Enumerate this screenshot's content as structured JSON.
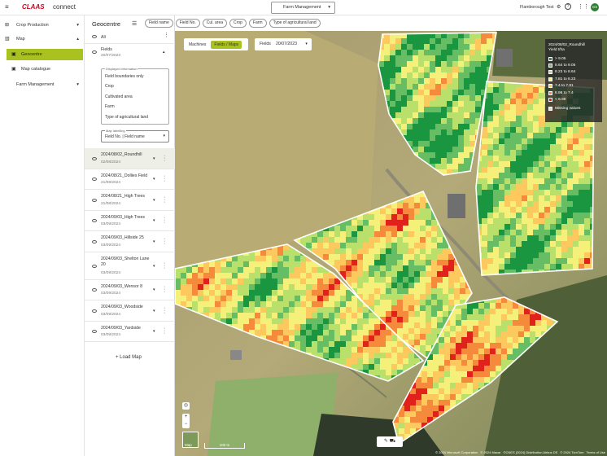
{
  "header": {
    "logo": "CLAAS",
    "app": "connect",
    "farm_select": "Farm Management",
    "farm": "Flamborough Test",
    "avatar": "GS"
  },
  "nav": [
    "Crop Production",
    "Map",
    "Geocentre",
    "Map catalogue",
    "Farm Management"
  ],
  "panel": {
    "title": "Geocentre",
    "filters": [
      "Field name",
      "Field No.",
      "Cul. area",
      "Crop",
      "Farm",
      "Type of agricultural land"
    ],
    "all": "All",
    "fields": {
      "name": "Fields",
      "date": "20/07/2023"
    },
    "displayed_info": {
      "label": "Displayed information",
      "options": [
        "Field boundaries only",
        "Crop",
        "Cultivated area",
        "Farm",
        "Type of agricultural land"
      ]
    },
    "map_labelling": {
      "label": "Map labelling",
      "value": "Field No. | Field name"
    },
    "maps": [
      {
        "name": "2024/08/02_Roundhill",
        "date": "02/08/2024"
      },
      {
        "name": "2024/08/21_Dollies Field",
        "date": "21/08/2024"
      },
      {
        "name": "2024/08/21_High Trees",
        "date": "21/08/2024"
      },
      {
        "name": "2024/09/03_High Trees",
        "date": "03/09/2024"
      },
      {
        "name": "2024/09/03_Hillside 25",
        "date": "03/09/2024"
      },
      {
        "name": "2024/09/03_Shelton Lane 20",
        "date": "03/09/2024"
      },
      {
        "name": "2024/09/03_Wensor 8",
        "date": "03/09/2024"
      },
      {
        "name": "2024/09/03_Woodside",
        "date": "03/09/2024"
      },
      {
        "name": "2024/09/03_Yardside",
        "date": "03/09/2024"
      }
    ],
    "load": "Load Map"
  },
  "map": {
    "tabs": [
      "Machines",
      "Fields / Maps"
    ],
    "fields_label": "Fields",
    "date": "20/07/2023",
    "legend": {
      "title": "2024/08/02_Roundhill",
      "unit": "Yield t/ha",
      "entries": [
        {
          "label": "> 9.05",
          "color": "#1a9641"
        },
        {
          "label": "8.64 to 9.05",
          "color": "#66bd63"
        },
        {
          "label": "8.23 to 8.64",
          "color": "#b8e06a"
        },
        {
          "label": "7.81 to 8.23",
          "color": "#f5f07a"
        },
        {
          "label": "7.4 to 7.81",
          "color": "#fdc95e"
        },
        {
          "label": "6.98 to 7.4",
          "color": "#f68a3c"
        },
        {
          "label": "< 6.98",
          "color": "#e0211c"
        }
      ],
      "missing": "Missing values"
    },
    "scale": "100 m",
    "thumb": "Map",
    "attribution": [
      "© 2024 Microsoft Corporation",
      "© 2024 Maxar",
      "©CNES (2024) Distribution Airbus DS",
      "© 2024 TomTom",
      "Terms of Use"
    ]
  }
}
